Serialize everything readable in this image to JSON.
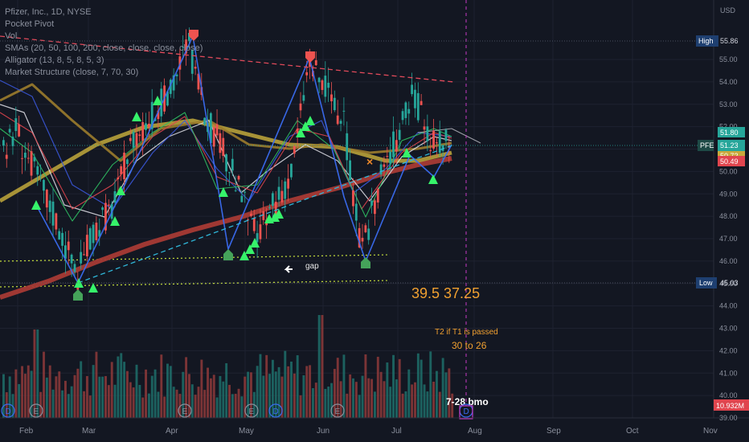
{
  "legend": {
    "title": "Pfizer, Inc., 1D, NYSE",
    "line2": "Pocket Pivot",
    "line3": "Vol",
    "line4": "SMAs (20, 50, 100, 200, close, close, close, close)",
    "line5": "Alligator (13, 8, 5, 8, 5, 3)",
    "line6": "Market Structure (close, 7, 70, 30)"
  },
  "axis": {
    "currency": "USD",
    "high_label": "High",
    "high_value": "55.86",
    "low_label": "Low",
    "low_value": "45.03",
    "pfe_label": "PFE",
    "pfe_value": "51.23",
    "tag_51_80": "51.80",
    "tag_50_72": "50.72",
    "tag_50_49": "50.49",
    "volume_value": "10.932M"
  },
  "annotations": {
    "gap": "gap",
    "targets": "39.5  37.25",
    "t2_note": "T2 if T1 is passed",
    "range": "30 to 26",
    "earnings": "7-28 bmo"
  },
  "chart_data": {
    "type": "candlestick",
    "title": "Pfizer, Inc., 1D, NYSE",
    "ylim": [
      39.0,
      56.5
    ],
    "y_ticks": [
      "55.00",
      "54.00",
      "53.00",
      "52.00",
      "51.00",
      "50.00",
      "49.00",
      "48.00",
      "47.00",
      "46.00",
      "45.00",
      "44.00",
      "43.00",
      "42.00",
      "41.00",
      "40.00",
      "39.00"
    ],
    "x_ticks": [
      "Feb",
      "Mar",
      "Apr",
      "May",
      "Jun",
      "Jul",
      "Aug",
      "Sep",
      "Oct",
      "Nov"
    ],
    "price_path": [
      {
        "d": "Jan 27",
        "p": 52.3
      },
      {
        "d": "Feb 03",
        "p": 51.0
      },
      {
        "d": "Feb 10",
        "p": 49.3
      },
      {
        "d": "Feb 17",
        "p": 47.5
      },
      {
        "d": "Feb 24",
        "p": 45.3
      },
      {
        "d": "Mar 03",
        "p": 47.5
      },
      {
        "d": "Mar 10",
        "p": 48.5
      },
      {
        "d": "Mar 17",
        "p": 51.5
      },
      {
        "d": "Mar 24",
        "p": 52.5
      },
      {
        "d": "Mar 31",
        "p": 53.5
      },
      {
        "d": "Apr 07",
        "p": 55.8
      },
      {
        "d": "Apr 14",
        "p": 52.5
      },
      {
        "d": "Apr 21",
        "p": 51.0
      },
      {
        "d": "Apr 28",
        "p": 49.2
      },
      {
        "d": "May 05",
        "p": 47.0
      },
      {
        "d": "May 12",
        "p": 48.5
      },
      {
        "d": "May 19",
        "p": 50.0
      },
      {
        "d": "May 26",
        "p": 55.0
      },
      {
        "d": "Jun 02",
        "p": 53.5
      },
      {
        "d": "Jun 09",
        "p": 52.0
      },
      {
        "d": "Jun 16",
        "p": 46.2
      },
      {
        "d": "Jun 23",
        "p": 49.5
      },
      {
        "d": "Jun 30",
        "p": 51.5
      },
      {
        "d": "Jul 07",
        "p": 53.5
      },
      {
        "d": "Jul 14",
        "p": 51.2
      },
      {
        "d": "Jul 19",
        "p": 51.23
      }
    ],
    "series": [
      {
        "name": "SMA 200",
        "values": [
          44.9,
          46.2,
          47.5,
          48.5,
          49.1,
          49.6,
          50.2,
          50.7
        ]
      },
      {
        "name": "SMA 100",
        "values": [
          48.9,
          50.7,
          51.9,
          51.6,
          51.1,
          50.6,
          50.6,
          51.0
        ]
      }
    ],
    "levels": {
      "high": 55.86,
      "low": 45.03,
      "last": 51.23
    }
  }
}
